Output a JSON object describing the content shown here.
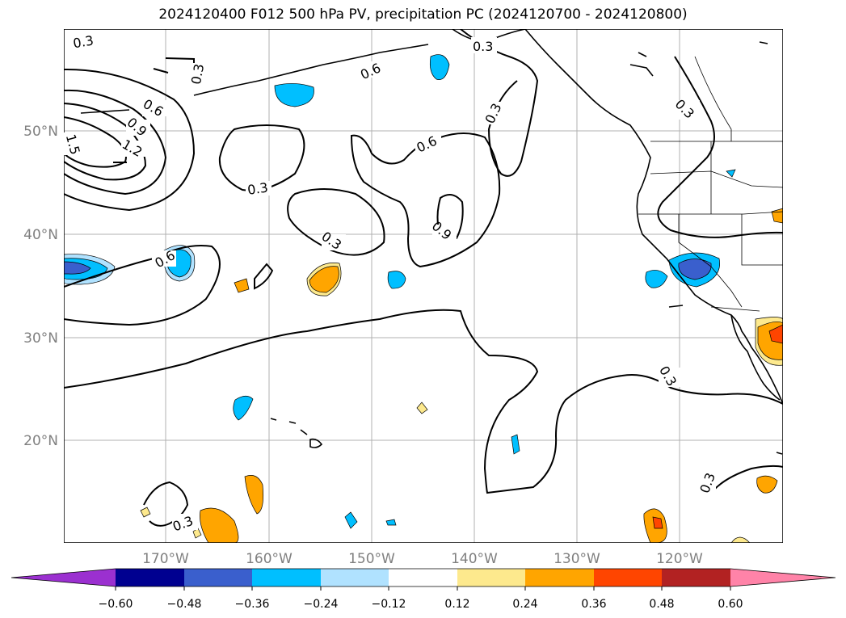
{
  "title": "2024120400 F012 500 hPa PV, precipitation PC (2024120700 - 2024120800)",
  "map": {
    "lat_labels": [
      "50°N",
      "40°N",
      "30°N",
      "20°N"
    ],
    "lon_labels": [
      "170°W",
      "160°W",
      "150°W",
      "140°W",
      "130°W",
      "120°W"
    ],
    "contour_labels": [
      "0.3",
      "0.3",
      "0.6",
      "0.3",
      "0.6",
      "0.9",
      "1.2",
      "1.5",
      "0.6",
      "0.3",
      "0.3",
      "0.6",
      "0.9",
      "0.3",
      "0.3",
      "0.3",
      "0.3",
      "0.3"
    ]
  },
  "colorbar": {
    "ticks": [
      "−0.60",
      "−0.48",
      "−0.36",
      "−0.24",
      "−0.12",
      "0.12",
      "0.24",
      "0.36",
      "0.48",
      "0.60"
    ],
    "colors": [
      "#9b30d0",
      "#000090",
      "#3a5fcd",
      "#00bfff",
      "#b0e2ff",
      "#ffffff",
      "#fde98d",
      "#ffa500",
      "#ff4500",
      "#b22222",
      "#ff83a8"
    ]
  }
}
